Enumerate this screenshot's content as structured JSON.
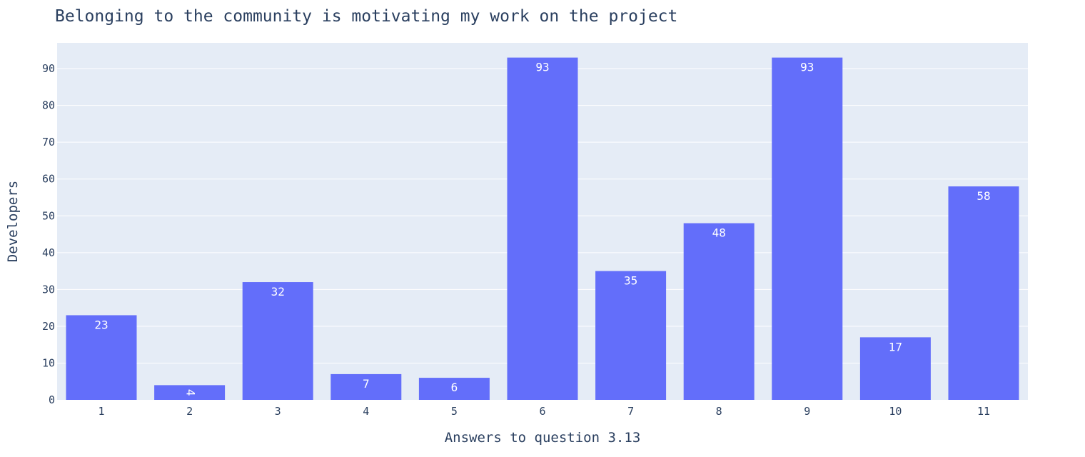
{
  "chart_data": {
    "type": "bar",
    "title": "Belonging to the community is motivating my work on the project",
    "xlabel": "Answers to question 3.13",
    "ylabel": "Developers",
    "categories": [
      "1",
      "2",
      "3",
      "4",
      "5",
      "6",
      "7",
      "8",
      "9",
      "10",
      "11"
    ],
    "values": [
      23,
      4,
      32,
      7,
      6,
      93,
      35,
      48,
      93,
      17,
      58
    ],
    "ylim": [
      0,
      97
    ],
    "yticks": [
      0,
      10,
      20,
      30,
      40,
      50,
      60,
      70,
      80,
      90
    ],
    "grid": true,
    "colors": {
      "bar": "#636efa",
      "plot_bg": "#e5ecf6",
      "grid": "#ffffff",
      "text": "#2a3f5f",
      "label": "#ffffff"
    }
  }
}
